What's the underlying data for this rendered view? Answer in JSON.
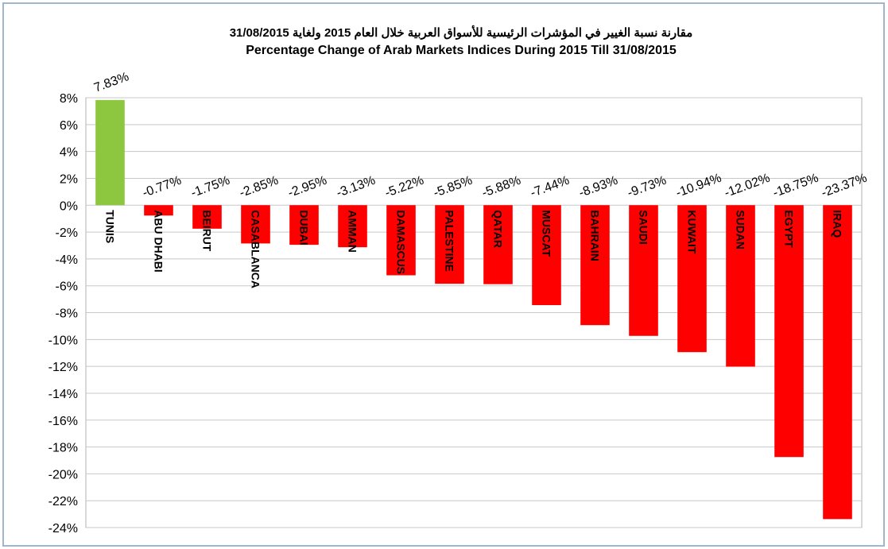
{
  "chart_data": {
    "type": "bar",
    "title": "مقارنة نسبة الغيير في المؤشرات الرئيسية للأسواق العربية خلال العام 2015 ولغاية 31/08/2015",
    "subtitle": "Percentage Change  of Arab Markets Indices During 2015 Till 31/08/2015",
    "categories": [
      "TUNIS",
      "ABU DHABI",
      "BEIRUT",
      "CASABLANCA",
      "DUBAI",
      "AMMAN",
      "DAMASCUS",
      "PALESTINE",
      "QATAR",
      "MUSCAT",
      "BAHRAIN",
      "SAUDI",
      "KUWAIT",
      "SUDAN",
      "EGYPT",
      "IRAQ"
    ],
    "values": [
      7.83,
      -0.77,
      -1.75,
      -2.85,
      -2.95,
      -3.13,
      -5.22,
      -5.85,
      -5.88,
      -7.44,
      -8.93,
      -9.73,
      -10.94,
      -12.02,
      -18.75,
      -23.37
    ],
    "value_labels": [
      "7.83%",
      "-0.77%",
      "-1.75%",
      "-2.85%",
      "-2.95%",
      "-3.13%",
      "-5.22%",
      "-5.85%",
      "-5.88%",
      "-7.44%",
      "-8.93%",
      "-9.73%",
      "-10.94%",
      "-12.02%",
      "-18.75%",
      "-23.37%"
    ],
    "colors": [
      "#8dc63f",
      "#ff0000",
      "#ff0000",
      "#ff0000",
      "#ff0000",
      "#ff0000",
      "#ff0000",
      "#ff0000",
      "#ff0000",
      "#ff0000",
      "#ff0000",
      "#ff0000",
      "#ff0000",
      "#ff0000",
      "#ff0000",
      "#ff0000"
    ],
    "ylim": [
      -24,
      8
    ],
    "yticks": [
      {
        "value": -24,
        "label": "-24%"
      },
      {
        "value": -22,
        "label": "-22%"
      },
      {
        "value": -20,
        "label": "-20%"
      },
      {
        "value": -18,
        "label": "-18%"
      },
      {
        "value": -16,
        "label": "-16%"
      },
      {
        "value": -14,
        "label": "-14%"
      },
      {
        "value": -12,
        "label": "-12%"
      },
      {
        "value": -10,
        "label": "-10%"
      },
      {
        "value": -8,
        "label": "-8%"
      },
      {
        "value": -6,
        "label": "-6%"
      },
      {
        "value": -4,
        "label": "-4%"
      },
      {
        "value": -2,
        "label": "-2%"
      },
      {
        "value": 0,
        "label": "0%"
      },
      {
        "value": 2,
        "label": "2%"
      },
      {
        "value": 4,
        "label": "4%"
      },
      {
        "value": 6,
        "label": "6%"
      },
      {
        "value": 8,
        "label": "8%"
      }
    ],
    "grid": true
  }
}
